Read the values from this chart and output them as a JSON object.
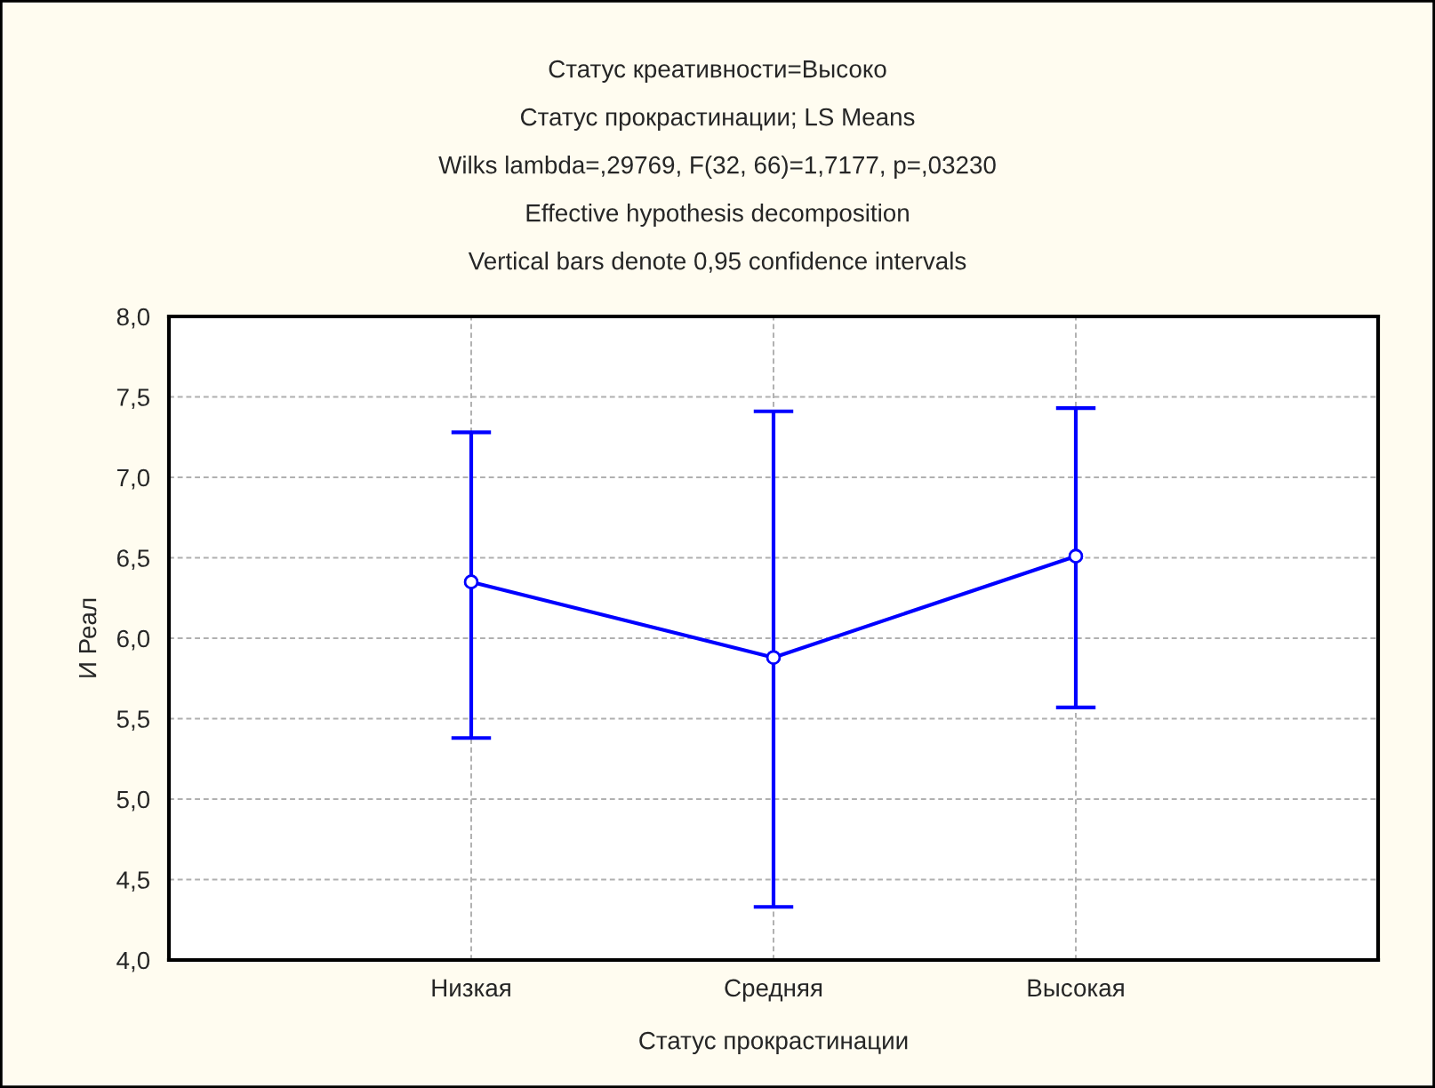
{
  "chart_data": {
    "type": "line",
    "title": "Статус креативности=Высоко",
    "subtitle": "Статус прокрастинации; LS Means",
    "annotations": [
      "Wilks lambda=,29769, F(32, 66)=1,7177, p=,03230",
      "Effective hypothesis decomposition",
      "Vertical bars denote 0,95 confidence intervals"
    ],
    "xlabel": "Статус прокрастинации",
    "ylabel": "И Реал",
    "categories": [
      "Низкая",
      "Средняя",
      "Высокая"
    ],
    "series": [
      {
        "color": "#0000ff",
        "values": [
          6.35,
          5.88,
          6.51
        ],
        "errors": [
          [
            5.38,
            7.28
          ],
          [
            4.33,
            7.41
          ],
          [
            5.57,
            7.43
          ]
        ]
      }
    ],
    "ylim": [
      4,
      8
    ],
    "yticks": [
      {
        "value": 4,
        "label": "4,0"
      },
      {
        "value": 4.5,
        "label": "4,5"
      },
      {
        "value": 5,
        "label": "5,0"
      },
      {
        "value": 5.5,
        "label": "5,5"
      },
      {
        "value": 6,
        "label": "6,0"
      },
      {
        "value": 6.5,
        "label": "6,5"
      },
      {
        "value": 7,
        "label": "7,0"
      },
      {
        "value": 7.5,
        "label": "7,5"
      },
      {
        "value": 8,
        "label": "8,0"
      }
    ],
    "grid": true,
    "marker": "circle",
    "line_style": "solid",
    "legend": false
  }
}
